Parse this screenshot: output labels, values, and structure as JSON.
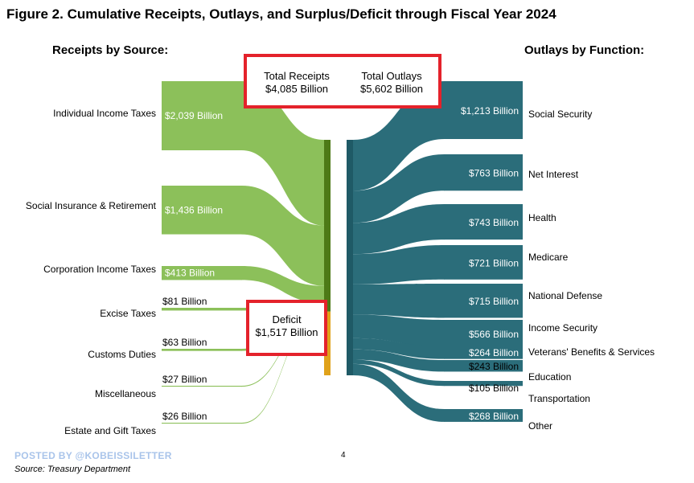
{
  "title": "Figure 2. Cumulative Receipts, Outlays, and Surplus/Deficit through Fiscal Year 2024",
  "receipts_heading": "Receipts by Source:",
  "outlays_heading": "Outlays by Function:",
  "summary_box": {
    "receipts_label": "Total Receipts",
    "receipts_value": "$4,085 Billion",
    "outlays_label": "Total Outlays",
    "outlays_value": "$5,602 Billion"
  },
  "deficit_box": {
    "label": "Deficit",
    "value": "$1,517 Billion"
  },
  "footer": {
    "posted_by": "POSTED BY @KOBEISSILETTER",
    "page_number": "4",
    "source": "Source: Treasury Department"
  },
  "colors": {
    "receipts": "#8cc05a",
    "receipts_bar": "#4d7a17",
    "deficit": "#e0a21a",
    "outlays": "#2b6d7a",
    "highlight_box": "#e4222b"
  },
  "chart_data": {
    "type": "sankey",
    "units": "Billion",
    "receipts": [
      {
        "name": "Individual Income Taxes",
        "value": 2039,
        "label": "$2,039 Billion"
      },
      {
        "name": "Social Insurance & Retirement",
        "value": 1436,
        "label": "$1,436 Billion"
      },
      {
        "name": "Corporation Income Taxes",
        "value": 413,
        "label": "$413 Billion"
      },
      {
        "name": "Excise Taxes",
        "value": 81,
        "label": "$81 Billion"
      },
      {
        "name": "Customs Duties",
        "value": 63,
        "label": "$63 Billion"
      },
      {
        "name": "Miscellaneous",
        "value": 27,
        "label": "$27 Billion"
      },
      {
        "name": "Estate and Gift Taxes",
        "value": 26,
        "label": "$26 Billion"
      }
    ],
    "deficit": {
      "value": 1517
    },
    "outlays": [
      {
        "name": "Social Security",
        "value": 1213,
        "label": "$1,213 Billion"
      },
      {
        "name": "Net Interest",
        "value": 763,
        "label": "$763 Billion"
      },
      {
        "name": "Health",
        "value": 743,
        "label": "$743 Billion"
      },
      {
        "name": "Medicare",
        "value": 721,
        "label": "$721 Billion"
      },
      {
        "name": "National Defense",
        "value": 715,
        "label": "$715 Billion"
      },
      {
        "name": "Income Security",
        "value": 566,
        "label": "$566 Billion"
      },
      {
        "name": "Veterans' Benefits & Services",
        "value": 264,
        "label": "$264 Billion"
      },
      {
        "name": "Education",
        "value": 243,
        "label": "$243 Billion"
      },
      {
        "name": "Transportation",
        "value": 105,
        "label": "$105 Billion"
      },
      {
        "name": "Other",
        "value": 268,
        "label": "$268 Billion"
      }
    ],
    "total_receipts": 4085,
    "total_outlays": 5602
  }
}
